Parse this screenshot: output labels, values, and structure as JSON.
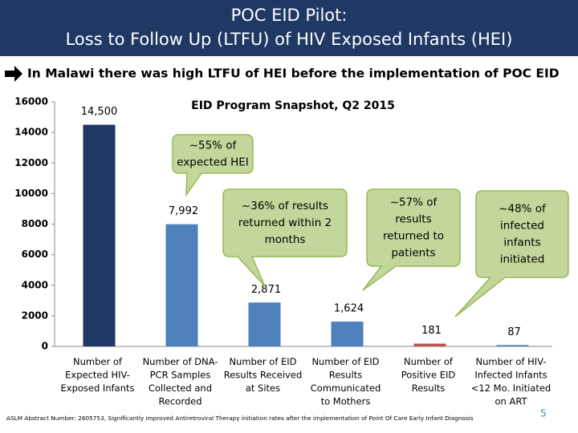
{
  "header": {
    "title": [
      "POC EID Pilot:",
      "Loss to Follow Up (LTFU) of HIV Exposed Infants (HEI)"
    ],
    "subtitle": "In Malawi there was high LTFU of HEI before the implementation of POC EID"
  },
  "chart_data": {
    "type": "bar",
    "title": "EID Program Snapshot, Q2 2015",
    "categories": [
      "Number of\nExpected HIV-\nExposed Infants",
      "Number of DNA-\nPCR Samples\nCollected and\nRecorded",
      "Number of EID\nResults Received\nat Sites",
      "Number of EID\nResults\nCommunicated\nto Mothers",
      "Number of\nPositive EID\nResults",
      "Number of HIV-\nInfected Infants\n<12 Mo. Initiated\non ART"
    ],
    "values": [
      14500,
      7992,
      2871,
      1624,
      181,
      87
    ],
    "value_labels": [
      "14,500",
      "7,992",
      "2,871",
      "1,624",
      "181",
      "87"
    ],
    "colors": [
      "#1f3864",
      "#4f81bd",
      "#4f81bd",
      "#4f81bd",
      "#c0504d",
      "#4f81bd"
    ],
    "ylim": [
      0,
      16000
    ],
    "yticks": [
      0,
      2000,
      4000,
      6000,
      8000,
      10000,
      12000,
      14000,
      16000
    ],
    "annotations": [
      "~55% of\nexpected HEI",
      "~36% of results\nreturned within 2\nmonths",
      "~57% of\nresults\nreturned to\npatients",
      "~48% of\ninfected\ninfants\ninitiated"
    ]
  },
  "footnote": "ASLM Abstract Number: 2605753, Significantly improved Antiretroviral Therapy initiation rates after the implementation of Point Of Care Early Infant Diagnosis",
  "page_number": "5"
}
